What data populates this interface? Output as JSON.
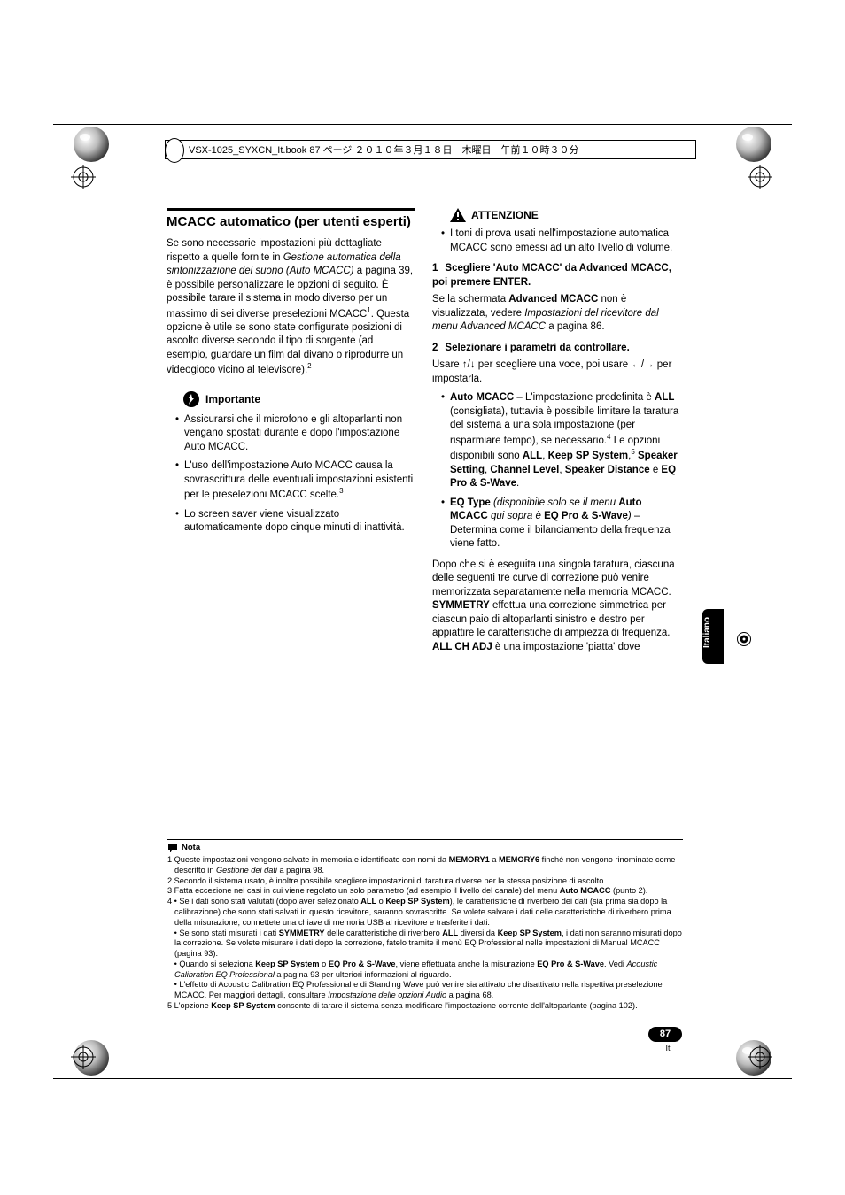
{
  "print_header": "VSX-1025_SYXCN_It.book  87 ページ  ２０１０年３月１８日　木曜日　午前１０時３０分",
  "left": {
    "title": "MCACC automatico (per utenti esperti)",
    "intro": "Se sono necessarie impostazioni più dettagliate rispetto a quelle fornite in <i>Gestione automatica della sintonizzazione del suono (Auto MCACC)</i> a pagina 39, è possibile personalizzare le opzioni di seguito. È possibile tarare il sistema in modo diverso per un massimo di sei diverse preselezioni MCACC<sup class=\"sup\">1</sup>. Questa opzione è utile se sono state configurate posizioni di ascolto diverse secondo il tipo di sorgente (ad esempio, guardare un film dal divano o riprodurre un videogioco vicino al televisore).<sup class=\"sup\">2</sup>",
    "importante_label": "Importante",
    "importante_items": [
      "Assicurarsi che il microfono e gli altoparlanti non vengano spostati durante e dopo l'impostazione Auto MCACC.",
      "L'uso dell'impostazione Auto MCACC causa la sovrascrittura delle eventuali impostazioni esistenti per le preselezioni MCACC scelte.<sup class=\"sup\">3</sup>",
      "Lo screen saver viene visualizzato automaticamente dopo cinque minuti di inattività."
    ]
  },
  "right": {
    "attenzione_label": "ATTENZIONE",
    "attenzione_item": "I toni di prova usati nell'impostazione automatica MCACC sono emessi ad un alto livello di volume.",
    "step1_num": "1",
    "step1_title": "Scegliere 'Auto MCACC' da Advanced MCACC, poi premere ENTER.",
    "step1_body": "Se la schermata <b>Advanced MCACC</b> non è visualizzata, vedere <i>Impostazioni del ricevitore dal menu Advanced MCACC</i> a pagina 86.",
    "step2_num": "2",
    "step2_title": "Selezionare i parametri da controllare.",
    "step2_body": "Usare <span class=\"arrow\">↑</span>/<span class=\"arrow\">↓</span> per scegliere una voce, poi usare <span class=\"arrow\">←</span>/<span class=\"arrow\">→</span> per impostarla.",
    "step2_items": [
      "<b>Auto MCACC</b> – L'impostazione predefinita è <b>ALL</b> (consigliata), tuttavia è possibile limitare la taratura del sistema a una sola impostazione (per risparmiare tempo), se necessario.<sup class=\"sup\">4</sup> Le opzioni disponibili sono <b>ALL</b>, <b>Keep SP System</b>,<sup class=\"sup\">5</sup> <b>Speaker Setting</b>, <b>Channel Level</b>, <b>Speaker Distance</b> e <b>EQ Pro & S-Wave</b>.",
      "<b>EQ Type</b> <i>(disponibile solo se il menu</i> <b>Auto MCACC</b> <i>qui sopra è</i> <b>EQ Pro & S-Wave</b><i>)</i> – Determina come il bilanciamento della frequenza viene fatto."
    ],
    "after": "Dopo che si è eseguita una singola taratura, ciascuna delle seguenti tre curve di correzione può venire memorizzata separatamente nella memoria MCACC. <b>SYMMETRY</b> effettua una correzione simmetrica per ciascun paio di altoparlanti sinistro e destro per appiattire le caratteristiche di ampiezza di frequenza. <b>ALL CH ADJ</b> è una impostazione 'piatta' dove"
  },
  "side_tab": "Italiano",
  "notes": {
    "label": "Nota",
    "lines": [
      "1 Queste impostazioni vengono salvate in memoria e identificate con nomi da <b>MEMORY1</b> a <b>MEMORY6</b> finché non vengono rinominate come descritto in <i>Gestione dei dati</i> a pagina 98.",
      "2 Secondo il sistema usato, è inoltre possibile scegliere impostazioni di taratura diverse per la stessa posizione di ascolto.",
      "3 Fatta eccezione nei casi in cui viene regolato un solo parametro (ad esempio il livello del canale) del menu <b>Auto MCACC</b> (punto 2).",
      "4 • Se i dati sono stati valutati (dopo aver selezionato <b>ALL</b> o <b>Keep SP System</b>), le caratteristiche di riverbero dei dati (sia prima sia dopo la calibrazione) che sono stati salvati in questo ricevitore, saranno sovrascritte. Se volete salvare i dati delle caratteristiche di riverbero prima della misurazione, connettete una chiave di memoria USB al ricevitore e trasferite i dati.",
      "&nbsp;&nbsp;&nbsp;• Se sono stati misurati i dati <b>SYMMETRY</b> delle caratteristiche di riverbero <b>ALL</b> diversi da <b>Keep SP System</b>, i dati non saranno misurati dopo la correzione. Se volete misurare i dati dopo la correzione, fatelo tramite il menù EQ Professional nelle impostazioni di Manual MCACC (pagina 93).",
      "&nbsp;&nbsp;&nbsp;• Quando si seleziona <b>Keep SP System</b> o <b>EQ Pro & S-Wave</b>, viene effettuata anche la misurazione <b>EQ Pro & S-Wave</b>. Vedi <i>Acoustic Calibration EQ Professional</i> a pagina 93 per ulteriori informazioni al riguardo.",
      "&nbsp;&nbsp;&nbsp;• L'effetto di Acoustic Calibration EQ Professional e di Standing Wave può venire sia attivato che disattivato nella rispettiva preselezione MCACC. Per maggiori dettagli, consultare <i>Impostazione delle opzioni Audio</i> a pagina 68.",
      "5 L'opzione <b>Keep SP System</b> consente di tarare il sistema senza modificare l'impostazione corrente dell'altoparlante (pagina 102)."
    ]
  },
  "page_number": "87",
  "page_lang": "It"
}
